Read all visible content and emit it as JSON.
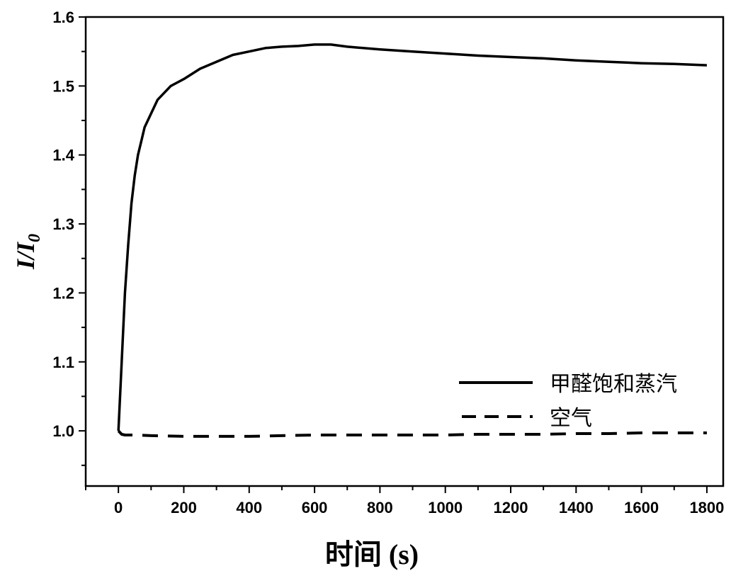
{
  "chart_data": {
    "type": "line",
    "xlabel": "时间 (s)",
    "ylabel": "I/I",
    "ylabel_subscript": "0",
    "xlim": [
      -100,
      1850
    ],
    "ylim": [
      0.92,
      1.6
    ],
    "xticks": [
      0,
      200,
      400,
      600,
      800,
      1000,
      1200,
      1400,
      1600,
      1800
    ],
    "yticks": [
      1.0,
      1.1,
      1.2,
      1.3,
      1.4,
      1.5,
      1.6
    ],
    "xtick_labels": [
      "0",
      "200",
      "400",
      "600",
      "800",
      "1000",
      "1200",
      "1400",
      "1600",
      "1800"
    ],
    "ytick_labels": [
      "1.0",
      "1.1",
      "1.2",
      "1.3",
      "1.4",
      "1.5",
      "1.6"
    ],
    "legend_position": "bottom-right",
    "series": [
      {
        "name": "甲醛饱和蒸汽",
        "style": "solid",
        "color": "#000000",
        "x": [
          0,
          10,
          20,
          30,
          40,
          50,
          60,
          70,
          80,
          90,
          100,
          120,
          140,
          160,
          180,
          200,
          250,
          300,
          350,
          400,
          450,
          500,
          550,
          600,
          650,
          700,
          800,
          900,
          1000,
          1100,
          1200,
          1300,
          1400,
          1500,
          1600,
          1700,
          1800
        ],
        "y": [
          1.0,
          1.1,
          1.2,
          1.27,
          1.33,
          1.37,
          1.4,
          1.42,
          1.44,
          1.45,
          1.46,
          1.48,
          1.49,
          1.5,
          1.505,
          1.51,
          1.525,
          1.535,
          1.545,
          1.55,
          1.555,
          1.557,
          1.558,
          1.56,
          1.56,
          1.557,
          1.553,
          1.55,
          1.547,
          1.544,
          1.542,
          1.54,
          1.537,
          1.535,
          1.533,
          1.532,
          1.53
        ]
      },
      {
        "name": "空气",
        "style": "dashed",
        "color": "#000000",
        "x": [
          0,
          10,
          20,
          50,
          100,
          200,
          300,
          400,
          500,
          600,
          700,
          800,
          900,
          1000,
          1100,
          1200,
          1300,
          1400,
          1500,
          1600,
          1700,
          1800
        ],
        "y": [
          1.0,
          0.995,
          0.994,
          0.994,
          0.993,
          0.992,
          0.992,
          0.992,
          0.993,
          0.994,
          0.994,
          0.994,
          0.994,
          0.994,
          0.995,
          0.995,
          0.995,
          0.996,
          0.996,
          0.997,
          0.997,
          0.997
        ]
      }
    ]
  }
}
